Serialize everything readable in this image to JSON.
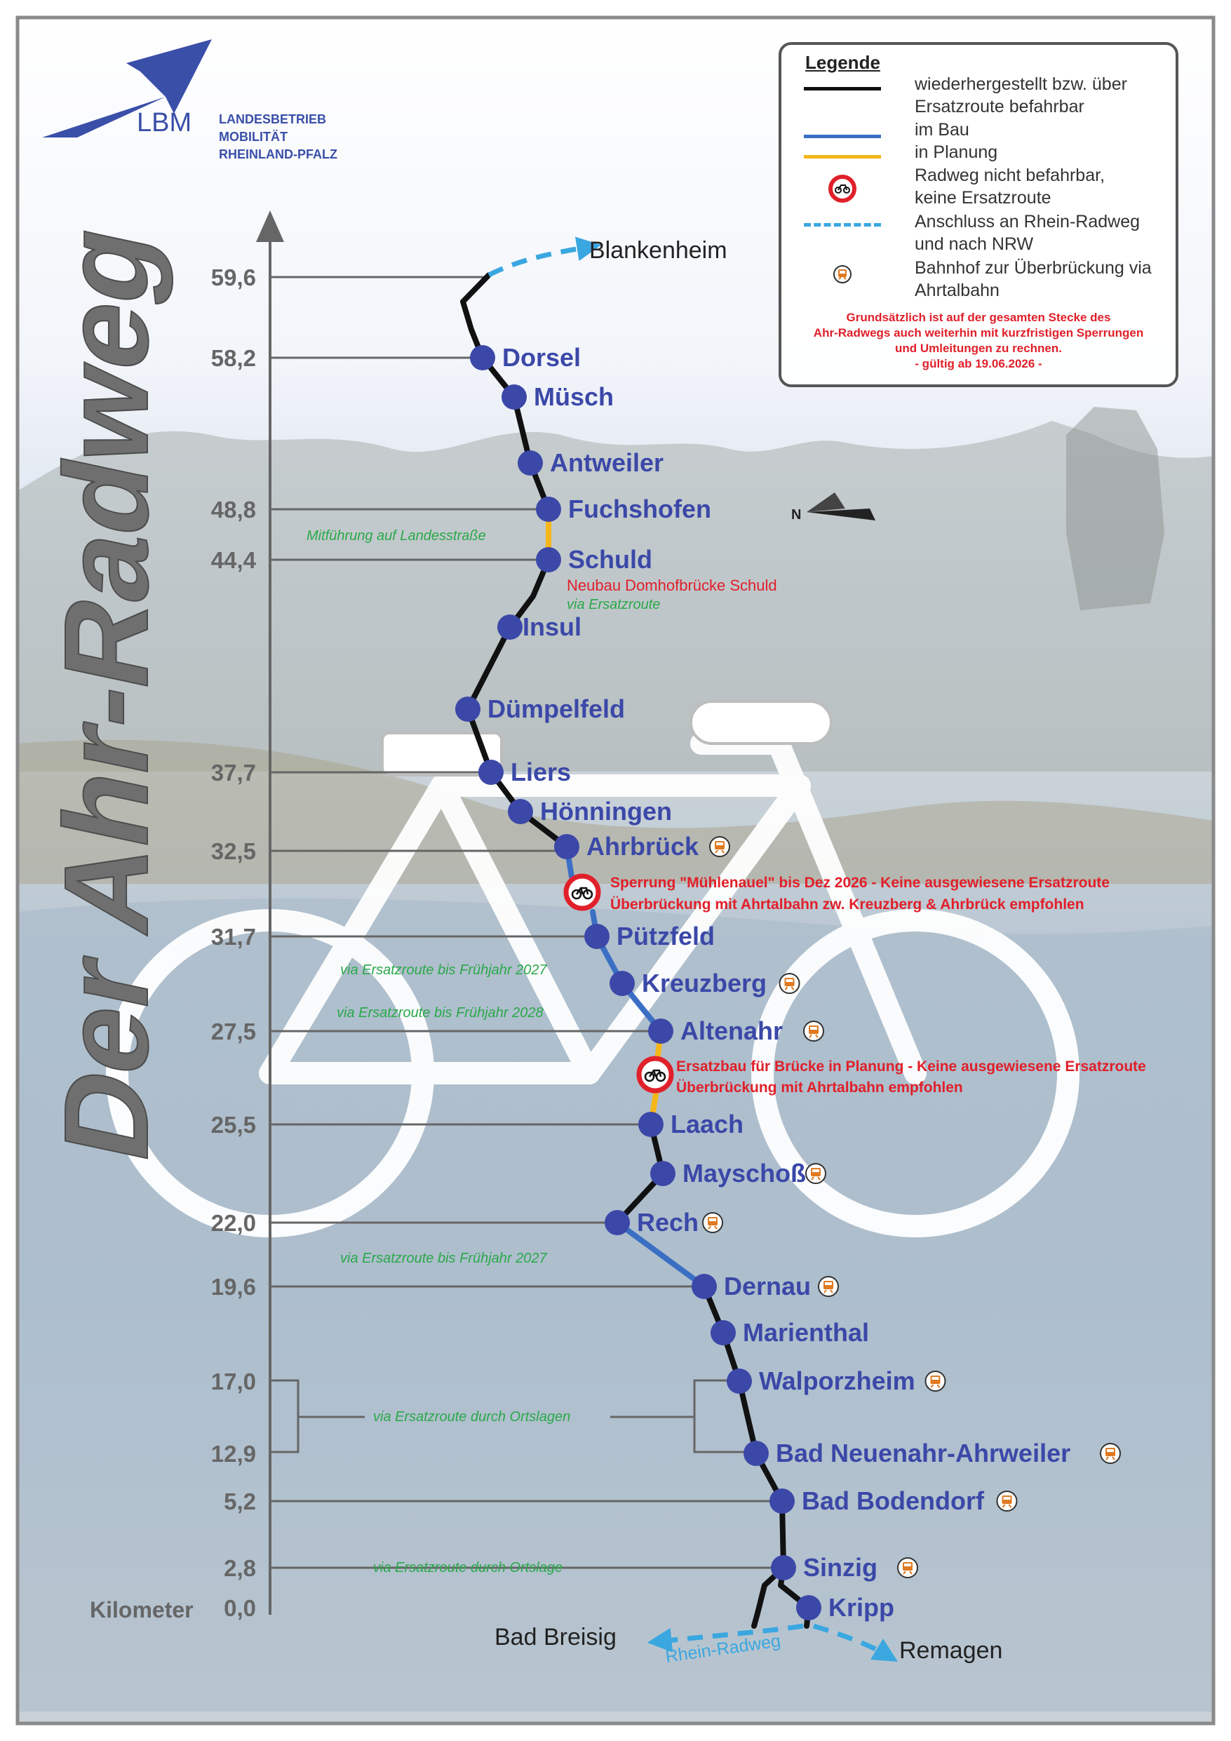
{
  "title": "Der Ahr-Radweg",
  "logo": {
    "abbr": "LBM",
    "org_lines": [
      "LANDESBETRIEB",
      "MOBILITÄT",
      "RHEINLAND-PFALZ"
    ]
  },
  "axis": {
    "unit_label": "Kilometer",
    "ticks": [
      "59,6",
      "58,2",
      "48,8",
      "44,4",
      "37,7",
      "32,5",
      "31,7",
      "27,5",
      "25,5",
      "22,0",
      "19,6",
      "17,0",
      "12,9",
      "5,2",
      "2,8",
      "0,0"
    ]
  },
  "compass": {
    "label": "N"
  },
  "stations": [
    {
      "name": "Dorsel",
      "km": "58,2",
      "train": false
    },
    {
      "name": "Müsch",
      "km": "",
      "train": false
    },
    {
      "name": "Antweiler",
      "km": "",
      "train": false
    },
    {
      "name": "Fuchshofen",
      "km": "48,8",
      "train": false
    },
    {
      "name": "Schuld",
      "km": "44,4",
      "train": false
    },
    {
      "name": "Insul",
      "km": "",
      "train": false
    },
    {
      "name": "Dümpelfeld",
      "km": "",
      "train": false
    },
    {
      "name": "Liers",
      "km": "37,7",
      "train": false
    },
    {
      "name": "Hönningen",
      "km": "",
      "train": false
    },
    {
      "name": "Ahrbrück",
      "km": "32,5",
      "train": true
    },
    {
      "name": "Pützfeld",
      "km": "31,7",
      "train": false
    },
    {
      "name": "Kreuzberg",
      "km": "",
      "train": true
    },
    {
      "name": "Altenahr",
      "km": "27,5",
      "train": true
    },
    {
      "name": "Laach",
      "km": "25,5",
      "train": false
    },
    {
      "name": "Mayschoß",
      "km": "",
      "train": true
    },
    {
      "name": "Rech",
      "km": "22,0",
      "train": true
    },
    {
      "name": "Dernau",
      "km": "19,6",
      "train": true
    },
    {
      "name": "Marienthal",
      "km": "",
      "train": false
    },
    {
      "name": "Walporzheim",
      "km": "17,0",
      "train": true
    },
    {
      "name": "Bad Neuenahr-Ahrweiler",
      "km": "12,9",
      "train": true
    },
    {
      "name": "Bad Bodendorf",
      "km": "5,2",
      "train": true
    },
    {
      "name": "Sinzig",
      "km": "2,8",
      "train": true
    },
    {
      "name": "Kripp",
      "km": "0,0",
      "train": false
    }
  ],
  "destinations": {
    "north": "Blankenheim",
    "left": "Bad Breisig",
    "right": "Remagen",
    "rhine_label": "Rhein-Radweg"
  },
  "notes": {
    "landesstrasse": "Mitführung auf Landesstraße",
    "schuld_red": "Neubau Domhofbrücke Schuld",
    "schuld_green": "via Ersatzroute",
    "ahrbrueck_red_1": "Sperrung \"Mühlenauel\" bis Dez 2026 - Keine ausgewiesene Ersatzroute",
    "ahrbrueck_red_2": "Überbrückung mit Ahrtalbahn zw. Kreuzberg & Ahrbrück empfohlen",
    "pf_green": "via Ersatzroute bis Frühjahr 2027",
    "kr_green": "via Ersatzroute bis Frühjahr 2028",
    "alt_red_1": "Ersatzbau für Brücke in Planung - Keine ausgewiesene Ersatzroute",
    "alt_red_2": "Überbrückung mit Ahrtalbahn empfohlen",
    "rech_green": "via Ersatzroute bis Frühjahr 2027",
    "ortslagen_green": "via Ersatzroute durch Ortslagen",
    "ortslage_green": "via Ersatzroute durch Ortslage"
  },
  "legend": {
    "title": "Legende",
    "items": [
      {
        "text": "wiederhergestellt bzw. über Ersatzroute befahrbar",
        "line1": "wiederhergestellt bzw. über",
        "line2": "Ersatzroute befahrbar",
        "color": "#111111"
      },
      {
        "text": "im Bau",
        "color": "#3b6fc4"
      },
      {
        "text": "in Planung",
        "color": "#f5b619"
      },
      {
        "text": "Radweg nicht befahrbar, keine Ersatzroute",
        "line1": "Radweg nicht befahrbar,",
        "line2": "keine Ersatzroute",
        "color": "#e0202a"
      },
      {
        "text": "Anschluss an Rhein-Radweg und nach NRW",
        "line1": "Anschluss an Rhein-Radweg",
        "line2": "und nach NRW",
        "color": "#3aa7e0"
      },
      {
        "text": "Bahnhof zur Überbrückung via Ahrtalbahn",
        "line1": "Bahnhof zur Überbrückung via",
        "line2": "Ahrtalbahn",
        "color": "#e07a20"
      }
    ],
    "note_lines": [
      "Grundsätzlich ist auf der gesamten Stecke des",
      "Ahr-Radwegs auch weiterhin mit kurzfristigen Sperrungen",
      "und Umleitungen zu rechnen.",
      "- gültig ab 19.06.2026 -"
    ]
  },
  "colors": {
    "station": "#3b48a8",
    "route_done": "#111111",
    "route_construction": "#3b6fc4",
    "route_planning": "#f5b619",
    "closed": "#e0202a",
    "rhine": "#3aa7e0",
    "note_green": "#2aa84a",
    "axis": "#666666"
  }
}
